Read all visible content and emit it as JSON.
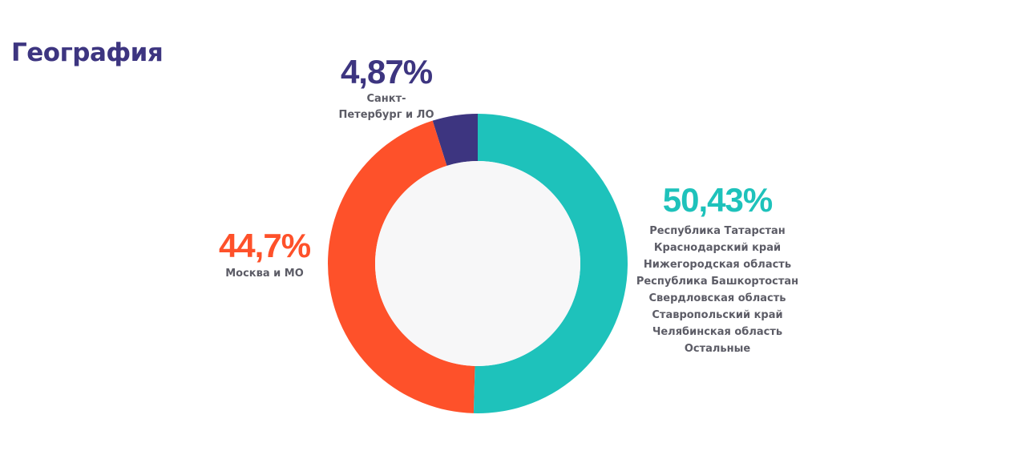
{
  "page": {
    "title": "География"
  },
  "chart_data": {
    "type": "pie",
    "variant": "donut",
    "title": "",
    "start_angle_deg": 0,
    "direction": "counterclockwise",
    "slices": [
      {
        "label_lines": [
          "Санкт-",
          "Петербург и ЛО"
        ],
        "value": 4.87,
        "display": "4,87%",
        "color": "#3d3580"
      },
      {
        "label_lines": [
          "Москва и МО"
        ],
        "value": 44.7,
        "display": "44,7%",
        "color": "#fe512a"
      },
      {
        "label_lines": [
          "Республика Татарстан",
          "Краснодарский край",
          "Нижегородская область",
          "Республика Башкортостан",
          "Свердловская область",
          "Ставропольский край",
          "Челябинская область",
          "Остальные"
        ],
        "value": 50.43,
        "display": "50,43%",
        "color": "#1ec2bb"
      }
    ],
    "center_fill": "#f7f7f8",
    "legend": "none",
    "grid": false
  }
}
